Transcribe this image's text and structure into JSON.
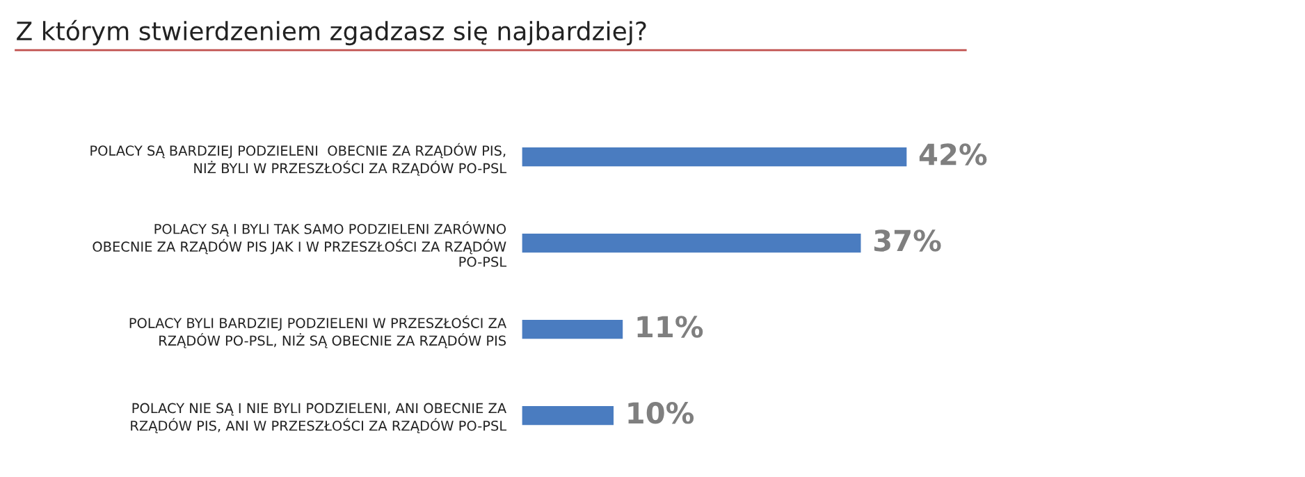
{
  "chart_data": {
    "type": "bar",
    "orientation": "horizontal",
    "title": "Z którym stwierdzeniem zgadzasz się najbardziej?",
    "categories": [
      "POLACY SĄ BARDZIEJ PODZIELENI  OBECNIE ZA RZĄDÓW PIS,\nNIŻ BYLI W PRZESZŁOŚCI ZA RZĄDÓW PO-PSL",
      "POLACY SĄ I BYLI TAK SAMO PODZIELENI ZARÓWNO\nOBECNIE ZA RZĄDÓW PIS JAK I W PRZESZŁOŚCI ZA RZĄDÓW\nPO-PSL",
      "POLACY BYLI BARDZIEJ PODZIELENI W PRZESZŁOŚCI ZA\nRZĄDÓW PO-PSL, NIŻ SĄ OBECNIE ZA RZĄDÓW PIS",
      "POLACY NIE SĄ I NIE BYLI PODZIELENI, ANI OBECNIE ZA\nRZĄDÓW PIS, ANI W PRZESZŁOŚCI ZA RZĄDÓW PO-PSL"
    ],
    "values": [
      42,
      37,
      11,
      10
    ],
    "value_labels": [
      "42%",
      "37%",
      "11%",
      "10%"
    ],
    "color": "#4a7cc0",
    "grid": false,
    "legend": false,
    "tick_labels": "y"
  }
}
